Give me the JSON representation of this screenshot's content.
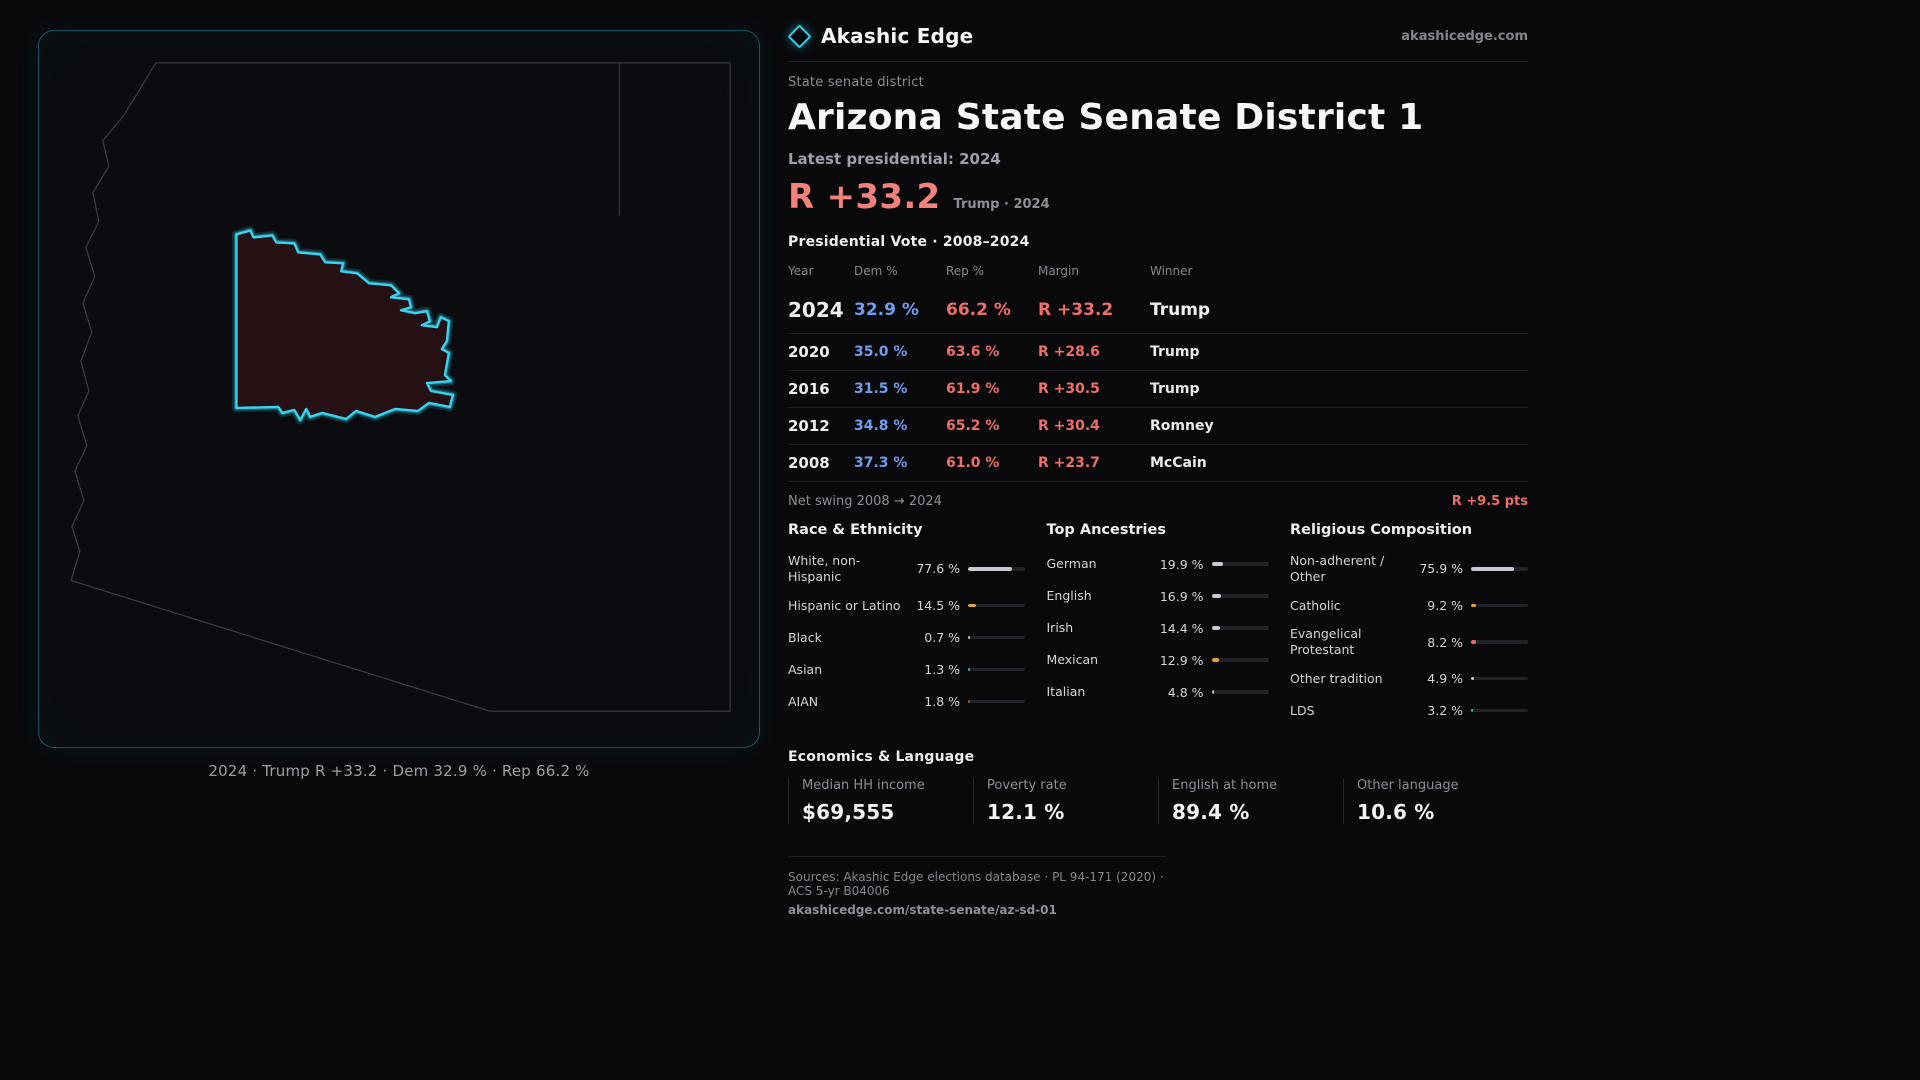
{
  "colors": {
    "accent_cyan": "#2bd1f0",
    "dem_blue": "#6d9ef0",
    "rep_red": "#ee6f68",
    "bar_default": "#c7cad2",
    "bar_amber": "#e2a43c",
    "bar_teal": "#35c7b6",
    "bar_rust": "#c05a2e"
  },
  "brand": {
    "name": "Akashic Edge",
    "domain": "akashicedge.com"
  },
  "map": {
    "caption": "2024 · Trump R +33.2 · Dem 32.9 % · Rep 66.2 %"
  },
  "header": {
    "eyebrow": "State senate district",
    "title": "Arizona State Senate District 1",
    "subtitle": "Latest presidential: 2024",
    "stat_value": "R +33.2",
    "stat_note": "Trump · 2024"
  },
  "vote_table": {
    "title": "Presidential Vote · 2008–2024",
    "columns": [
      "Year",
      "Dem %",
      "Rep %",
      "Margin",
      "Winner"
    ],
    "rows": [
      {
        "year": "2024",
        "dem": "32.9 %",
        "rep": "66.2 %",
        "margin": "R +33.2",
        "winner": "Trump"
      },
      {
        "year": "2020",
        "dem": "35.0 %",
        "rep": "63.6 %",
        "margin": "R +28.6",
        "winner": "Trump"
      },
      {
        "year": "2016",
        "dem": "31.5 %",
        "rep": "61.9 %",
        "margin": "R +30.5",
        "winner": "Trump"
      },
      {
        "year": "2012",
        "dem": "34.8 %",
        "rep": "65.2 %",
        "margin": "R +30.4",
        "winner": "Romney"
      },
      {
        "year": "2008",
        "dem": "37.3 %",
        "rep": "61.0 %",
        "margin": "R +23.7",
        "winner": "McCain"
      }
    ],
    "net_swing_label": "Net swing 2008 → 2024",
    "net_swing_value": "R +9.5 pts"
  },
  "demographics": [
    {
      "title": "Race & Ethnicity",
      "rows": [
        {
          "label": "White, non-Hispanic",
          "value": "77.6 %",
          "pct": 77.6,
          "color": "#c7cad2"
        },
        {
          "label": "Hispanic or Latino",
          "value": "14.5 %",
          "pct": 14.5,
          "color": "#e2a43c"
        },
        {
          "label": "Black",
          "value": "0.7 %",
          "pct": 0.7,
          "color": "#c7cad2"
        },
        {
          "label": "Asian",
          "value": "1.3 %",
          "pct": 1.3,
          "color": "#35c7b6"
        },
        {
          "label": "AIAN",
          "value": "1.8 %",
          "pct": 1.8,
          "color": "#c05a2e"
        }
      ]
    },
    {
      "title": "Top Ancestries",
      "rows": [
        {
          "label": "German",
          "value": "19.9 %",
          "pct": 19.9,
          "color": "#c7cad2"
        },
        {
          "label": "English",
          "value": "16.9 %",
          "pct": 16.9,
          "color": "#c7cad2"
        },
        {
          "label": "Irish",
          "value": "14.4 %",
          "pct": 14.4,
          "color": "#c7cad2"
        },
        {
          "label": "Mexican",
          "value": "12.9 %",
          "pct": 12.9,
          "color": "#e2a43c"
        },
        {
          "label": "Italian",
          "value": "4.8 %",
          "pct": 4.8,
          "color": "#c7cad2"
        }
      ]
    },
    {
      "title": "Religious Composition",
      "rows": [
        {
          "label": "Non-adherent / Other",
          "value": "75.9 %",
          "pct": 75.9,
          "color": "#c7cad2"
        },
        {
          "label": "Catholic",
          "value": "9.2 %",
          "pct": 9.2,
          "color": "#e2a43c"
        },
        {
          "label": "Evangelical Protestant",
          "value": "8.2 %",
          "pct": 8.2,
          "color": "#ee6f68"
        },
        {
          "label": "Other tradition",
          "value": "4.9 %",
          "pct": 4.9,
          "color": "#c7cad2"
        },
        {
          "label": "LDS",
          "value": "3.2 %",
          "pct": 3.2,
          "color": "#35c7b6"
        }
      ]
    }
  ],
  "economics": {
    "title": "Economics & Language",
    "stats": [
      {
        "label": "Median HH income",
        "value": "$69,555"
      },
      {
        "label": "Poverty rate",
        "value": "12.1 %"
      },
      {
        "label": "English at home",
        "value": "89.4 %"
      },
      {
        "label": "Other language",
        "value": "10.6 %"
      }
    ]
  },
  "footer": {
    "sources": "Sources: Akashic Edge elections database · PL 94-171 (2020) · ACS 5-yr B04006",
    "permalink": "akashicedge.com/state-senate/az-sd-01"
  }
}
